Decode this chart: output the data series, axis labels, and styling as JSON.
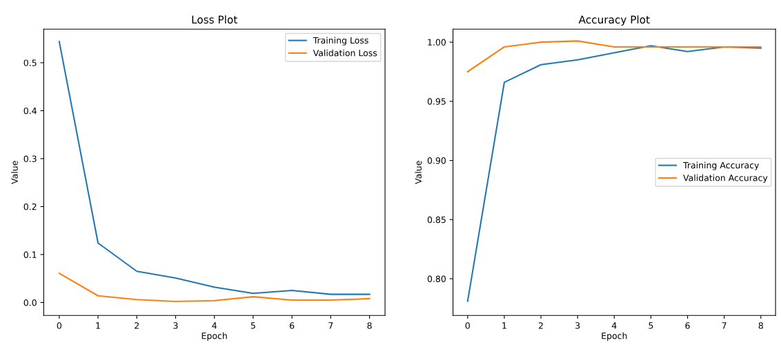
{
  "chart_data": [
    {
      "type": "line",
      "title": "Loss Plot",
      "xlabel": "Epoch",
      "ylabel": "Value",
      "x": [
        0,
        1,
        2,
        3,
        4,
        5,
        6,
        7,
        8
      ],
      "series": [
        {
          "name": "Training Loss",
          "color": "#1f77b4",
          "values": [
            0.544,
            0.124,
            0.065,
            0.051,
            0.032,
            0.019,
            0.025,
            0.017,
            0.017
          ]
        },
        {
          "name": "Validation Loss",
          "color": "#ff7f0e",
          "values": [
            0.061,
            0.014,
            0.006,
            0.002,
            0.004,
            0.012,
            0.005,
            0.005,
            0.008
          ]
        }
      ],
      "xlim": [
        -0.4,
        8.4
      ],
      "xticks": [
        0,
        1,
        2,
        3,
        4,
        5,
        6,
        7,
        8
      ],
      "ylim": [
        -0.027,
        0.57
      ],
      "yticks": [
        {
          "value": 0,
          "label": "0.0"
        },
        0.1,
        0.2,
        0.3,
        0.4,
        0.5
      ],
      "legend": "top right",
      "grid": false
    },
    {
      "type": "line",
      "title": "Accuracy Plot",
      "xlabel": "Epoch",
      "ylabel": "Value",
      "x": [
        0,
        1,
        2,
        3,
        4,
        5,
        6,
        7,
        8
      ],
      "series": [
        {
          "name": "Training Accuracy",
          "color": "#1f77b4",
          "values": [
            0.781,
            0.966,
            0.981,
            0.985,
            0.991,
            0.997,
            0.992,
            0.996,
            0.995
          ]
        },
        {
          "name": "Validation Accuracy",
          "color": "#ff7f0e",
          "values": [
            0.975,
            0.996,
            1.0,
            1.001,
            0.996,
            0.996,
            0.996,
            0.996,
            0.996
          ]
        }
      ],
      "xlim": [
        -0.4,
        8.4
      ],
      "xticks": [
        0,
        1,
        2,
        3,
        4,
        5,
        6,
        7,
        8
      ],
      "ylim": [
        0.769,
        1.011
      ],
      "yticks": [
        {
          "value": 0.8,
          "label": "0.80"
        },
        {
          "value": 0.85,
          "label": "0.85"
        },
        {
          "value": 0.9,
          "label": "0.90"
        },
        {
          "value": 0.95,
          "label": "0.95"
        },
        {
          "value": 1.0,
          "label": "1.00"
        }
      ],
      "legend": "right",
      "grid": false
    }
  ]
}
